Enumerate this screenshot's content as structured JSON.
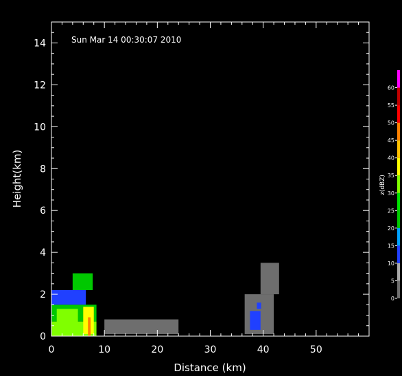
{
  "chart_data": {
    "type": "heatmap",
    "timestamp": "Sun Mar 14 00:30:07 2010",
    "xlabel": "Distance (km)",
    "ylabel": "Height(km)",
    "xlim": [
      0,
      60
    ],
    "ylim": [
      0,
      15
    ],
    "x_ticks": [
      0,
      10,
      20,
      30,
      40,
      50
    ],
    "y_ticks": [
      0,
      2,
      4,
      6,
      8,
      10,
      12,
      14
    ],
    "colorbar": {
      "label": "z(dBZ)",
      "ticks": [
        0,
        5,
        10,
        15,
        20,
        25,
        30,
        35,
        40,
        45,
        50,
        55,
        60
      ],
      "bins": [
        {
          "from": 0,
          "to": 5,
          "color": "#6e6e6e"
        },
        {
          "from": 5,
          "to": 10,
          "color": "#a8a8a8"
        },
        {
          "from": 10,
          "to": 15,
          "color": "#2040ff"
        },
        {
          "from": 15,
          "to": 20,
          "color": "#00a0ff"
        },
        {
          "from": 20,
          "to": 25,
          "color": "#00c800"
        },
        {
          "from": 25,
          "to": 30,
          "color": "#00e000"
        },
        {
          "from": 30,
          "to": 35,
          "color": "#80ff00"
        },
        {
          "from": 35,
          "to": 40,
          "color": "#ffff00"
        },
        {
          "from": 40,
          "to": 45,
          "color": "#ffbf00"
        },
        {
          "from": 45,
          "to": 50,
          "color": "#ff8000"
        },
        {
          "from": 50,
          "to": 55,
          "color": "#ff0000"
        },
        {
          "from": 55,
          "to": 60,
          "color": "#c00000"
        },
        {
          "from": 60,
          "to": 65,
          "color": "#ff00ff"
        }
      ]
    },
    "echo_regions": [
      {
        "x": [
          0.0,
          8.5
        ],
        "y": [
          0.0,
          0.7
        ],
        "dbz": 30
      },
      {
        "x": [
          0.0,
          8.5
        ],
        "y": [
          0.7,
          1.5
        ],
        "dbz": 22
      },
      {
        "x": [
          0.0,
          6.5
        ],
        "y": [
          1.5,
          2.2
        ],
        "dbz": 14
      },
      {
        "x": [
          4.0,
          7.8
        ],
        "y": [
          2.2,
          3.0
        ],
        "dbz": 24
      },
      {
        "x": [
          1.0,
          5.0
        ],
        "y": [
          0.3,
          1.3
        ],
        "dbz": 34
      },
      {
        "x": [
          6.0,
          8.0
        ],
        "y": [
          0.1,
          1.4
        ],
        "dbz": 38
      },
      {
        "x": [
          6.9,
          7.4
        ],
        "y": [
          0.0,
          0.9
        ],
        "dbz": 47
      },
      {
        "x": [
          10.0,
          24.0
        ],
        "y": [
          0.1,
          0.8
        ],
        "dbz": 3
      },
      {
        "x": [
          36.5,
          42.0
        ],
        "y": [
          0.1,
          2.0
        ],
        "dbz": 3
      },
      {
        "x": [
          39.5,
          43.0
        ],
        "y": [
          2.0,
          3.5
        ],
        "dbz": 3
      },
      {
        "x": [
          37.5,
          39.5
        ],
        "y": [
          0.3,
          1.2
        ],
        "dbz": 11
      },
      {
        "x": [
          38.8,
          39.6
        ],
        "y": [
          1.3,
          1.6
        ],
        "dbz": 12
      }
    ]
  }
}
